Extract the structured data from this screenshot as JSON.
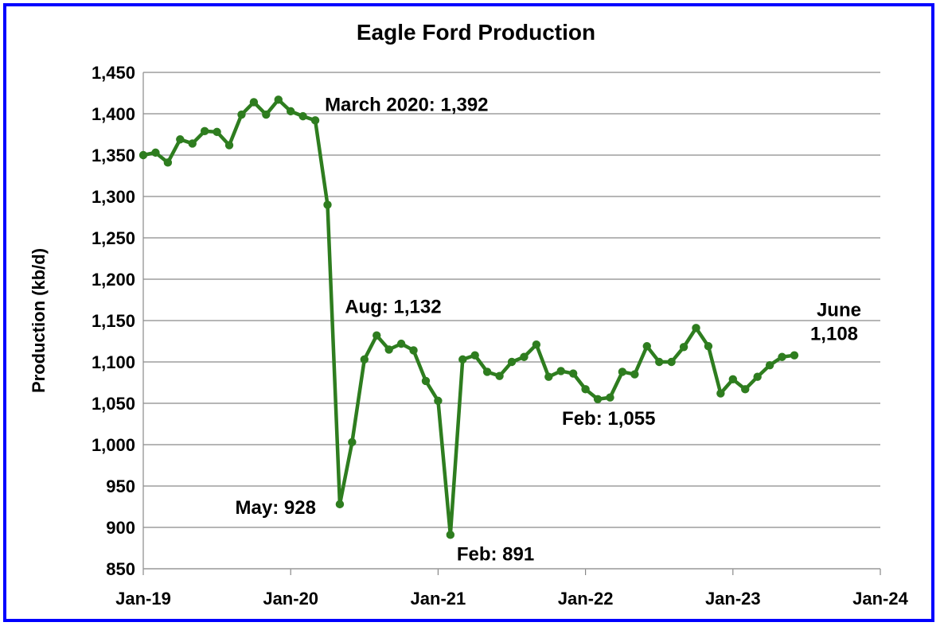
{
  "chart_data": {
    "type": "line",
    "title": "Eagle Ford Production",
    "ylabel": "Production (kb/d)",
    "xlabel": "",
    "ylim": [
      850,
      1450
    ],
    "yticks": [
      850,
      900,
      950,
      1000,
      1050,
      1100,
      1150,
      1200,
      1250,
      1300,
      1350,
      1400,
      1450
    ],
    "ytick_labels": [
      "850",
      "900",
      "950",
      "1,000",
      "1,050",
      "1,100",
      "1,150",
      "1,200",
      "1,250",
      "1,300",
      "1,350",
      "1,400",
      "1,450"
    ],
    "xlim": [
      "2019-01",
      "2024-01"
    ],
    "xticks": [
      "2019-01",
      "2020-01",
      "2021-01",
      "2022-01",
      "2023-01",
      "2024-01"
    ],
    "xtick_labels": [
      "Jan-19",
      "Jan-20",
      "Jan-21",
      "Jan-22",
      "Jan-23",
      "Jan-24"
    ],
    "grid": "horizontal",
    "series_color": "#2e7d1f",
    "series": [
      {
        "name": "",
        "x": [
          "2019-01",
          "2019-02",
          "2019-03",
          "2019-04",
          "2019-05",
          "2019-06",
          "2019-07",
          "2019-08",
          "2019-09",
          "2019-10",
          "2019-11",
          "2019-12",
          "2020-01",
          "2020-02",
          "2020-03",
          "2020-04",
          "2020-05",
          "2020-06",
          "2020-07",
          "2020-08",
          "2020-09",
          "2020-10",
          "2020-11",
          "2020-12",
          "2021-01",
          "2021-02",
          "2021-03",
          "2021-04",
          "2021-05",
          "2021-06",
          "2021-07",
          "2021-08",
          "2021-09",
          "2021-10",
          "2021-11",
          "2021-12",
          "2022-01",
          "2022-02",
          "2022-03",
          "2022-04",
          "2022-05",
          "2022-06",
          "2022-07",
          "2022-08",
          "2022-09",
          "2022-10",
          "2022-11",
          "2022-12",
          "2023-01",
          "2023-02",
          "2023-03",
          "2023-04",
          "2023-05",
          "2023-06"
        ],
        "values": [
          1350,
          1353,
          1341,
          1369,
          1364,
          1379,
          1378,
          1362,
          1399,
          1414,
          1399,
          1417,
          1403,
          1397,
          1392,
          1290,
          928,
          1003,
          1103,
          1132,
          1115,
          1122,
          1114,
          1077,
          1053,
          891,
          1103,
          1108,
          1088,
          1083,
          1100,
          1106,
          1121,
          1082,
          1089,
          1086,
          1067,
          1055,
          1057,
          1088,
          1085,
          1119,
          1100,
          1100,
          1118,
          1141,
          1119,
          1062,
          1079,
          1067,
          1082,
          1096,
          1106,
          1108
        ]
      }
    ],
    "annotations": [
      {
        "text": "March 2020: 1,392",
        "x": "2020-03",
        "y": 1392
      },
      {
        "text": "Aug: 1,132",
        "x": "2020-08",
        "y": 1132
      },
      {
        "text": "May: 928",
        "x": "2020-05",
        "y": 928
      },
      {
        "text": "Feb: 891",
        "x": "2021-02",
        "y": 891
      },
      {
        "text": "Feb: 1,055",
        "x": "2022-02",
        "y": 1055
      },
      {
        "text": "June",
        "x": "2023-06",
        "y": 1108
      },
      {
        "text": "1,108",
        "x": "2023-06",
        "y": 1108
      }
    ]
  }
}
